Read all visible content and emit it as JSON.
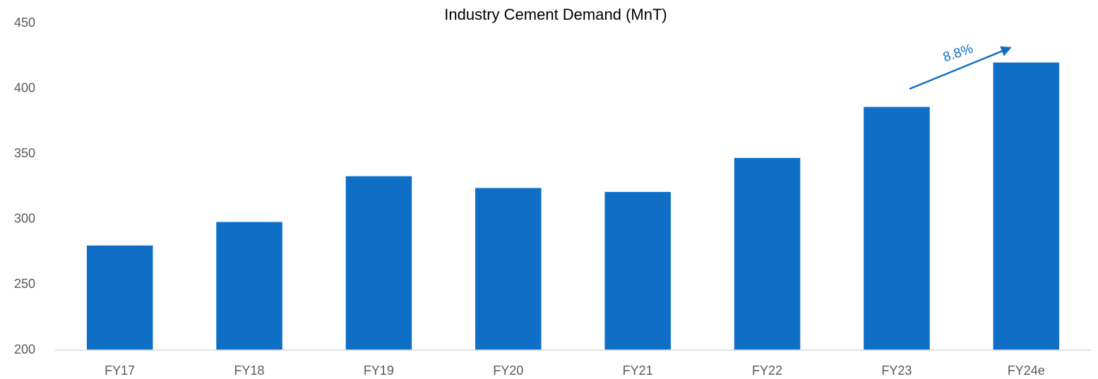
{
  "chart_data": {
    "type": "bar",
    "title": "Industry Cement Demand (MnT)",
    "categories": [
      "FY17",
      "FY18",
      "FY19",
      "FY20",
      "FY21",
      "FY22",
      "FY23",
      "FY24e"
    ],
    "values": [
      280,
      298,
      333,
      324,
      321,
      347,
      386,
      420
    ],
    "color": "#0f6fc6",
    "ylim": [
      200,
      450
    ],
    "yticks": [
      200,
      250,
      300,
      350,
      400,
      450
    ],
    "grid": false,
    "annotations": [
      "8.8%"
    ]
  }
}
